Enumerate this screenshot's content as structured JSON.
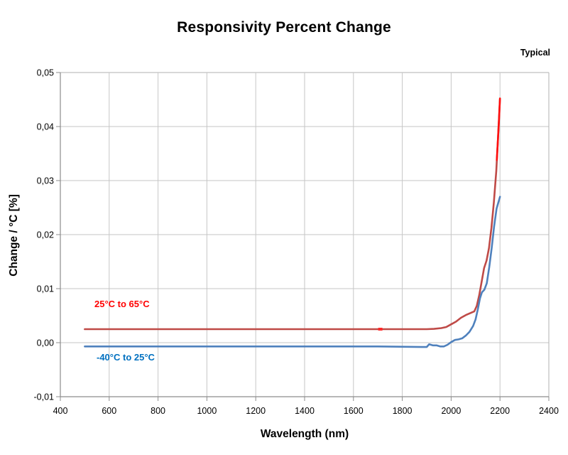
{
  "title": "Responsivity Percent Change",
  "corner_note": "Typical",
  "chart_data": {
    "type": "line",
    "title": "Responsivity Percent Change",
    "xlabel": "Wavelength (nm)",
    "ylabel": "Change / °C [%]",
    "xlim": [
      400,
      2400
    ],
    "ylim": [
      -0.01,
      0.05
    ],
    "grid": true,
    "decimal_separator": ",",
    "annotations": [
      "Typical"
    ],
    "x_ticks": {
      "values": [
        400,
        600,
        800,
        1000,
        1200,
        1400,
        1600,
        1800,
        2000,
        2200,
        2400
      ],
      "labels": [
        "400",
        "600",
        "800",
        "1000",
        "1200",
        "1400",
        "1600",
        "1800",
        "2000",
        "2200",
        "2400"
      ]
    },
    "y_ticks": {
      "values": [
        0.05,
        0.04,
        0.03,
        0.02,
        0.01,
        0.0,
        -0.01
      ],
      "labels": [
        "0,05",
        "0,04",
        "0,03",
        "0,02",
        "0,01",
        "0,00",
        "-0,01"
      ]
    },
    "series": [
      {
        "name": "25°C to 65°C",
        "color": "#bf4a47",
        "label_color": "#ff0000",
        "points": [
          [
            500,
            0.0025
          ],
          [
            800,
            0.0025
          ],
          [
            1100,
            0.0025
          ],
          [
            1400,
            0.0025
          ],
          [
            1700,
            0.0025
          ],
          [
            1850,
            0.0025
          ],
          [
            1900,
            0.0025
          ],
          [
            1930,
            0.00255
          ],
          [
            1960,
            0.0027
          ],
          [
            1980,
            0.0029
          ],
          [
            2000,
            0.0034
          ],
          [
            2020,
            0.0039
          ],
          [
            2040,
            0.0046
          ],
          [
            2060,
            0.0051
          ],
          [
            2080,
            0.0055
          ],
          [
            2095,
            0.0058
          ],
          [
            2105,
            0.0068
          ],
          [
            2115,
            0.0088
          ],
          [
            2125,
            0.0113
          ],
          [
            2135,
            0.0138
          ],
          [
            2145,
            0.0152
          ],
          [
            2155,
            0.0175
          ],
          [
            2165,
            0.0213
          ],
          [
            2175,
            0.026
          ],
          [
            2185,
            0.0318
          ],
          [
            2192,
            0.0378
          ],
          [
            2200,
            0.0452
          ]
        ],
        "tail_highlight": {
          "color": "#ff0f0f",
          "points": [
            [
              2187,
              0.0338
            ],
            [
              2192,
              0.0378
            ],
            [
              2196,
              0.0412
            ],
            [
              2200,
              0.0452
            ]
          ]
        },
        "marker": {
          "x": 1710,
          "v": 0.0025,
          "color": "#ff2a2a"
        }
      },
      {
        "name": "-40°C to 25°C",
        "color": "#4f81bd",
        "label_color": "#0070c0",
        "points": [
          [
            500,
            -0.0007
          ],
          [
            800,
            -0.0007
          ],
          [
            1100,
            -0.0007
          ],
          [
            1400,
            -0.0007
          ],
          [
            1700,
            -0.0007
          ],
          [
            1880,
            -0.0008
          ],
          [
            1900,
            -0.0008
          ],
          [
            1910,
            -0.0003
          ],
          [
            1925,
            -0.0005
          ],
          [
            1940,
            -0.0005
          ],
          [
            1955,
            -0.0007
          ],
          [
            1970,
            -0.0007
          ],
          [
            1985,
            -0.0004
          ],
          [
            2000,
            0.0001
          ],
          [
            2015,
            0.0005
          ],
          [
            2030,
            0.0006
          ],
          [
            2045,
            0.0008
          ],
          [
            2060,
            0.0013
          ],
          [
            2075,
            0.002
          ],
          [
            2090,
            0.0031
          ],
          [
            2100,
            0.0043
          ],
          [
            2110,
            0.0063
          ],
          [
            2118,
            0.0082
          ],
          [
            2126,
            0.0093
          ],
          [
            2136,
            0.0098
          ],
          [
            2146,
            0.011
          ],
          [
            2156,
            0.014
          ],
          [
            2166,
            0.0175
          ],
          [
            2176,
            0.0215
          ],
          [
            2186,
            0.0248
          ],
          [
            2200,
            0.027
          ]
        ]
      }
    ],
    "style_colors": {
      "gridline": "#c6c6c6",
      "plot_border": "#b2b2b2",
      "axis": "#8c8c8c",
      "text": "#000000"
    }
  }
}
